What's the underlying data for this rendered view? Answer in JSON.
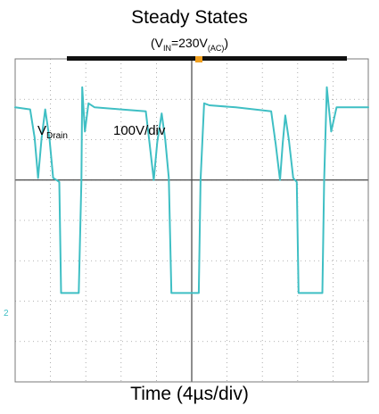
{
  "chart_data": {
    "type": "line",
    "title": "Steady States",
    "subtitle": {
      "pre": "(V",
      "sub1": "IN",
      "mid": "=230V",
      "sub2": "(AC)",
      "post": ")"
    },
    "xlabel": "Time (4µs/div)",
    "annotations": {
      "signal_main": "V",
      "signal_sub": "Drain",
      "scale": "100V/div"
    },
    "channel_marker": "2",
    "grid": true,
    "divisions": {
      "x": 10,
      "y": 8
    },
    "xlim": [
      0,
      40
    ],
    "ylim": [
      -500,
      300
    ],
    "series": [
      {
        "color": "#3fbfc4",
        "x": [
          0,
          1.7,
          2.2,
          2.6,
          3.0,
          3.4,
          3.9,
          4.3,
          4.7,
          5.0,
          5.2,
          6.0,
          6.5,
          7.2,
          7.5,
          7.6,
          7.9,
          8.3,
          9.0,
          12.0,
          14.8,
          15.2,
          15.7,
          16.1,
          16.6,
          17.0,
          17.4,
          17.7,
          19.0,
          20.8,
          21.0,
          21.4,
          22.0,
          25.0,
          29.0,
          29.5,
          30.0,
          30.3,
          30.6,
          31.0,
          31.5,
          31.9,
          32.1,
          33.0,
          34.8,
          35.0,
          35.3,
          35.8,
          36.4,
          37.0,
          40.0
        ],
        "y": [
          180,
          175,
          105,
          5,
          105,
          175,
          100,
          5,
          0,
          -5,
          -280,
          -280,
          -280,
          -280,
          0,
          230,
          120,
          190,
          180,
          175,
          170,
          95,
          0,
          95,
          165,
          100,
          5,
          -280,
          -280,
          -280,
          0,
          190,
          185,
          180,
          170,
          90,
          0,
          90,
          160,
          100,
          5,
          -5,
          -280,
          -280,
          -280,
          0,
          230,
          120,
          180,
          180,
          180
        ]
      }
    ]
  }
}
